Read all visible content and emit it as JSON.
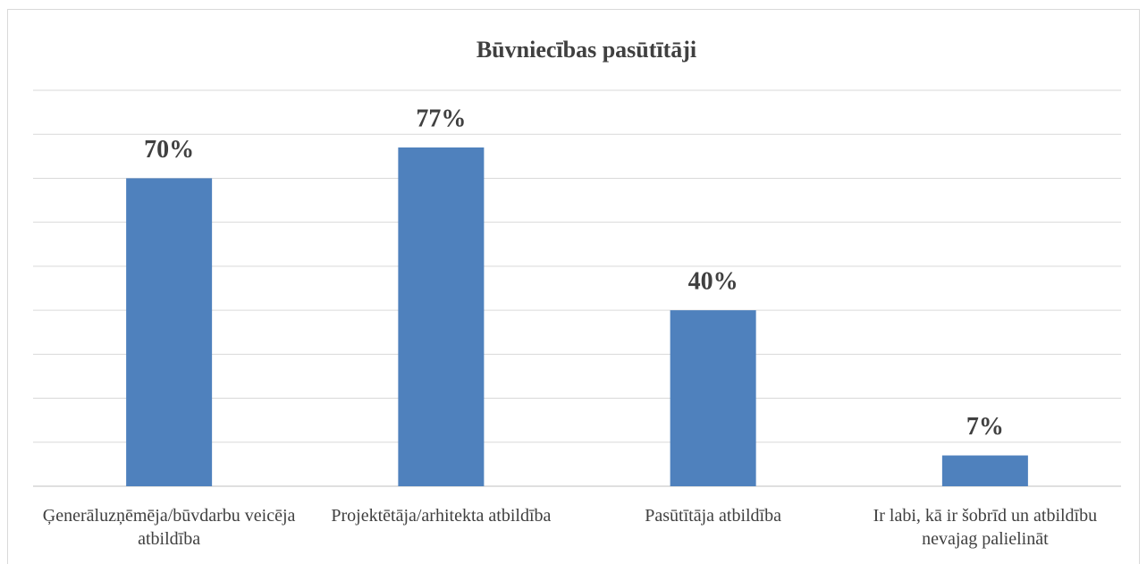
{
  "chart_data": {
    "type": "bar",
    "title": "Būvniecības pasūtītāji",
    "categories": [
      "Ģenerāluzņēmēja/būvdarbu veicēja atbildība",
      "Projektētāja/arhitekta atbildība",
      "Pasūtītāja atbildība",
      "Ir labi, kā ir šobrīd un atbildību nevajag palielināt"
    ],
    "values": [
      70,
      77,
      40,
      7
    ],
    "value_labels": [
      "70%",
      "77%",
      "40%",
      "7%"
    ],
    "color": "#4f81bd",
    "ylim": [
      0,
      90
    ],
    "yticks": [
      0,
      10,
      20,
      30,
      40,
      50,
      60,
      70,
      80,
      90
    ],
    "grid": true
  }
}
